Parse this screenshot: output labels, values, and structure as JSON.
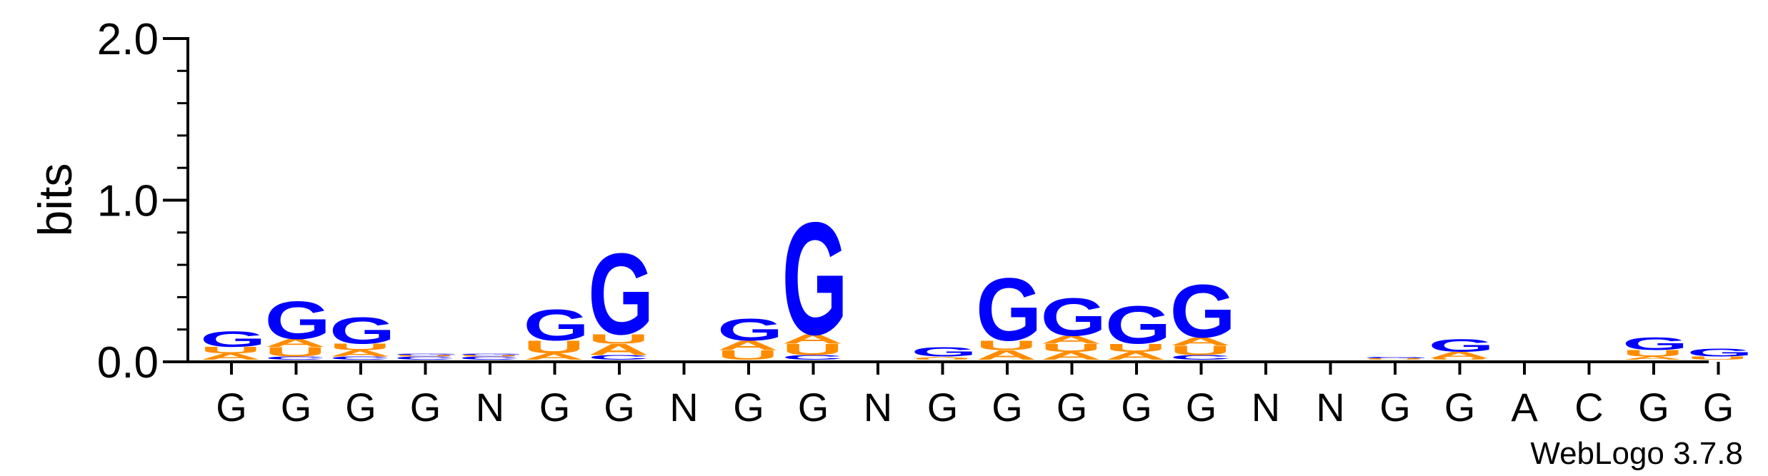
{
  "chart_data": {
    "type": "sequence-logo",
    "ylabel": "bits",
    "ylim": [
      0,
      2.0
    ],
    "yticks": [
      "0.0",
      "1.0",
      "2.0"
    ],
    "footer": "WebLogo 3.7.8",
    "colors": {
      "G": "#0000ff",
      "U": "#ff8c00",
      "A": "#ff8c00",
      "C": "#0000ff"
    },
    "positions": [
      {
        "label": "G",
        "stack": [
          {
            "letter": "A",
            "height": 0.04
          },
          {
            "letter": "U",
            "height": 0.04
          },
          {
            "letter": "G",
            "height": 0.1
          }
        ]
      },
      {
        "label": "G",
        "stack": [
          {
            "letter": "C",
            "height": 0.02
          },
          {
            "letter": "U",
            "height": 0.06
          },
          {
            "letter": "A",
            "height": 0.05
          },
          {
            "letter": "G",
            "height": 0.24
          }
        ]
      },
      {
        "label": "G",
        "stack": [
          {
            "letter": "C",
            "height": 0.02
          },
          {
            "letter": "A",
            "height": 0.04
          },
          {
            "letter": "U",
            "height": 0.04
          },
          {
            "letter": "G",
            "height": 0.17
          }
        ]
      },
      {
        "label": "G",
        "stack": [
          {
            "letter": "C",
            "height": 0.02
          },
          {
            "letter": "U",
            "height": 0.01
          },
          {
            "letter": "G",
            "height": 0.01
          }
        ]
      },
      {
        "label": "N",
        "stack": [
          {
            "letter": "C",
            "height": 0.02
          },
          {
            "letter": "U",
            "height": 0.01
          },
          {
            "letter": "G",
            "height": 0.01
          }
        ]
      },
      {
        "label": "G",
        "stack": [
          {
            "letter": "A",
            "height": 0.04
          },
          {
            "letter": "U",
            "height": 0.08
          },
          {
            "letter": "G",
            "height": 0.2
          }
        ]
      },
      {
        "label": "G",
        "stack": [
          {
            "letter": "C",
            "height": 0.03
          },
          {
            "letter": "A",
            "height": 0.07
          },
          {
            "letter": "U",
            "height": 0.06
          },
          {
            "letter": "G",
            "height": 0.52
          }
        ]
      },
      {
        "label": "N",
        "stack": []
      },
      {
        "label": "G",
        "stack": [
          {
            "letter": "U",
            "height": 0.06
          },
          {
            "letter": "A",
            "height": 0.06
          },
          {
            "letter": "G",
            "height": 0.14
          }
        ]
      },
      {
        "label": "G",
        "stack": [
          {
            "letter": "C",
            "height": 0.03
          },
          {
            "letter": "U",
            "height": 0.07
          },
          {
            "letter": "A",
            "height": 0.06
          },
          {
            "letter": "G",
            "height": 0.72
          }
        ]
      },
      {
        "label": "N",
        "stack": []
      },
      {
        "label": "G",
        "stack": [
          {
            "letter": "U",
            "height": 0.01
          },
          {
            "letter": "A",
            "height": 0.01
          },
          {
            "letter": "G",
            "height": 0.06
          }
        ]
      },
      {
        "label": "G",
        "stack": [
          {
            "letter": "A",
            "height": 0.06
          },
          {
            "letter": "U",
            "height": 0.06
          },
          {
            "letter": "G",
            "height": 0.4
          }
        ]
      },
      {
        "label": "G",
        "stack": [
          {
            "letter": "A",
            "height": 0.05
          },
          {
            "letter": "U",
            "height": 0.05
          },
          {
            "letter": "A",
            "height": 0.05
          },
          {
            "letter": "G",
            "height": 0.24
          }
        ]
      },
      {
        "label": "G",
        "stack": [
          {
            "letter": "A",
            "height": 0.05
          },
          {
            "letter": "U",
            "height": 0.05
          },
          {
            "letter": "G",
            "height": 0.24
          }
        ]
      },
      {
        "label": "G",
        "stack": [
          {
            "letter": "C",
            "height": 0.03
          },
          {
            "letter": "U",
            "height": 0.06
          },
          {
            "letter": "A",
            "height": 0.05
          },
          {
            "letter": "G",
            "height": 0.34
          }
        ]
      },
      {
        "label": "N",
        "stack": []
      },
      {
        "label": "N",
        "stack": []
      },
      {
        "label": "G",
        "stack": [
          {
            "letter": "U",
            "height": 0.01
          },
          {
            "letter": "G",
            "height": 0.01
          }
        ]
      },
      {
        "label": "G",
        "stack": [
          {
            "letter": "U",
            "height": 0.01
          },
          {
            "letter": "A",
            "height": 0.04
          },
          {
            "letter": "G",
            "height": 0.08
          }
        ]
      },
      {
        "label": "A",
        "stack": []
      },
      {
        "label": "C",
        "stack": []
      },
      {
        "label": "G",
        "stack": [
          {
            "letter": "A",
            "height": 0.02
          },
          {
            "letter": "U",
            "height": 0.04
          },
          {
            "letter": "G",
            "height": 0.08
          }
        ]
      },
      {
        "label": "G",
        "stack": [
          {
            "letter": "U",
            "height": 0.02
          },
          {
            "letter": "G",
            "height": 0.05
          }
        ]
      }
    ]
  }
}
